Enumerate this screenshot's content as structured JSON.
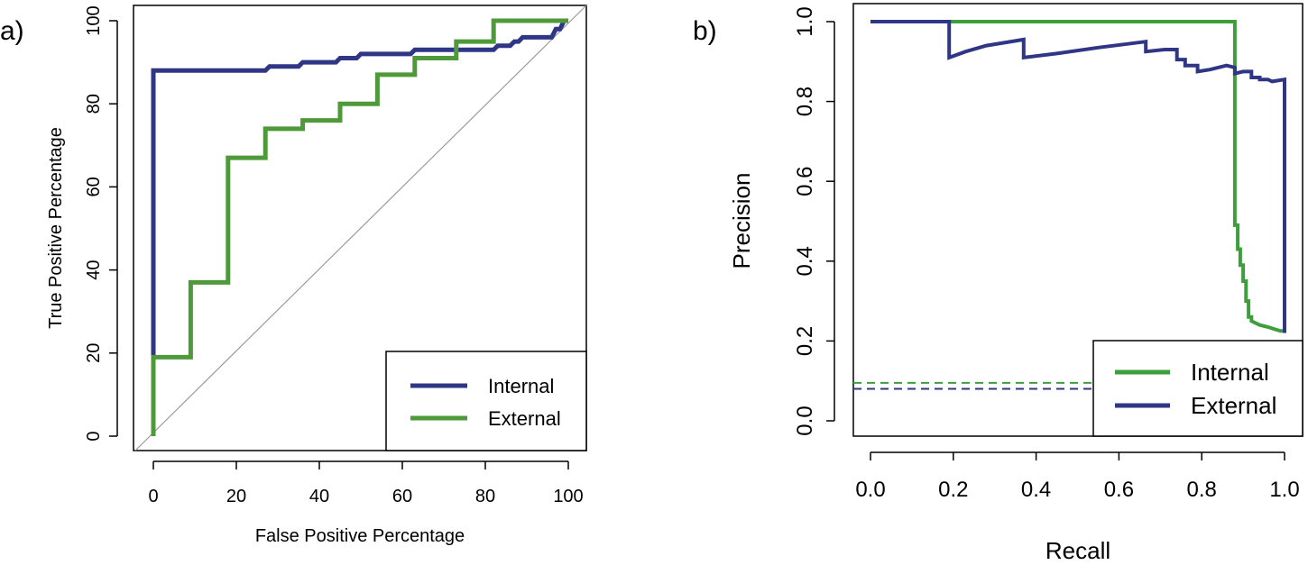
{
  "colors": {
    "blue": "#2E3685",
    "green": "#4E9A3A",
    "green_b": "#3E9E3C",
    "diag": "#9A9A9A"
  },
  "chart_data": [
    {
      "panel": "a)",
      "type": "line",
      "title": "",
      "xlabel": "False Positive Percentage",
      "ylabel": "True Positive Percentage",
      "xlim": [
        0,
        100
      ],
      "ylim": [
        0,
        100
      ],
      "xticks": [
        "0",
        "20",
        "40",
        "60",
        "80",
        "100"
      ],
      "yticks": [
        "0",
        "20",
        "40",
        "60",
        "80",
        "100"
      ],
      "legend": {
        "position": "bottom-right",
        "entries": [
          "Internal",
          "External"
        ]
      },
      "reference_line": {
        "from": [
          0,
          0
        ],
        "to": [
          100,
          100
        ]
      },
      "series": [
        {
          "name": "Internal",
          "color": "blue",
          "points": [
            [
              0,
              0
            ],
            [
              0,
              88
            ],
            [
              27,
              88
            ],
            [
              28,
              89
            ],
            [
              35,
              89
            ],
            [
              36,
              90
            ],
            [
              44,
              90
            ],
            [
              45,
              91
            ],
            [
              49,
              91
            ],
            [
              50,
              92
            ],
            [
              62,
              92
            ],
            [
              63,
              93
            ],
            [
              72,
              93
            ],
            [
              73,
              93
            ],
            [
              82,
              93
            ],
            [
              83,
              94
            ],
            [
              86,
              94
            ],
            [
              87,
              95
            ],
            [
              88,
              95
            ],
            [
              89,
              96
            ],
            [
              96,
              96
            ],
            [
              97,
              98
            ],
            [
              98,
              98
            ],
            [
              99,
              100
            ],
            [
              100,
              100
            ]
          ]
        },
        {
          "name": "External",
          "color": "green",
          "points": [
            [
              0,
              0
            ],
            [
              0,
              19
            ],
            [
              9,
              19
            ],
            [
              9,
              37
            ],
            [
              18,
              37
            ],
            [
              18,
              67
            ],
            [
              27,
              67
            ],
            [
              27,
              74
            ],
            [
              36,
              74
            ],
            [
              36,
              76
            ],
            [
              45,
              76
            ],
            [
              45,
              80
            ],
            [
              54,
              80
            ],
            [
              54,
              87
            ],
            [
              63,
              87
            ],
            [
              63,
              91
            ],
            [
              73,
              91
            ],
            [
              73,
              95
            ],
            [
              82,
              95
            ],
            [
              82,
              100
            ],
            [
              100,
              100
            ]
          ]
        }
      ]
    },
    {
      "panel": "b)",
      "type": "line",
      "title": "",
      "xlabel": "Recall",
      "ylabel": "Precision",
      "xlim": [
        0,
        1
      ],
      "ylim": [
        0,
        1
      ],
      "xticks": [
        "0.0",
        "0.2",
        "0.4",
        "0.6",
        "0.8",
        "1.0"
      ],
      "yticks": [
        "0.0",
        "0.2",
        "0.4",
        "0.6",
        "0.8",
        "1.0"
      ],
      "legend": {
        "position": "bottom-right",
        "entries": [
          "Internal",
          "External"
        ]
      },
      "baselines": [
        {
          "series": "Internal",
          "y": 0.095,
          "color": "green_b"
        },
        {
          "series": "External",
          "y": 0.08,
          "color": "blue"
        }
      ],
      "series": [
        {
          "name": "Internal",
          "color": "green_b",
          "points": [
            [
              0,
              1
            ],
            [
              0.88,
              1
            ],
            [
              0.88,
              0.49
            ],
            [
              0.887,
              0.49
            ],
            [
              0.887,
              0.43
            ],
            [
              0.893,
              0.43
            ],
            [
              0.893,
              0.39
            ],
            [
              0.9,
              0.39
            ],
            [
              0.9,
              0.35
            ],
            [
              0.907,
              0.35
            ],
            [
              0.907,
              0.3
            ],
            [
              0.913,
              0.3
            ],
            [
              0.913,
              0.26
            ],
            [
              0.92,
              0.26
            ],
            [
              0.92,
              0.25
            ],
            [
              0.94,
              0.24
            ],
            [
              0.96,
              0.235
            ],
            [
              0.975,
              0.23
            ],
            [
              0.99,
              0.225
            ],
            [
              1,
              0.225
            ],
            [
              1,
              0.22
            ]
          ]
        },
        {
          "name": "External",
          "color": "blue",
          "points": [
            [
              0,
              1
            ],
            [
              0.19,
              1
            ],
            [
              0.19,
              0.91
            ],
            [
              0.23,
              0.925
            ],
            [
              0.28,
              0.94
            ],
            [
              0.37,
              0.955
            ],
            [
              0.37,
              0.91
            ],
            [
              0.45,
              0.92
            ],
            [
              0.55,
              0.935
            ],
            [
              0.665,
              0.95
            ],
            [
              0.665,
              0.925
            ],
            [
              0.71,
              0.93
            ],
            [
              0.74,
              0.93
            ],
            [
              0.74,
              0.905
            ],
            [
              0.76,
              0.905
            ],
            [
              0.76,
              0.89
            ],
            [
              0.79,
              0.89
            ],
            [
              0.79,
              0.875
            ],
            [
              0.82,
              0.88
            ],
            [
              0.86,
              0.89
            ],
            [
              0.88,
              0.885
            ],
            [
              0.88,
              0.87
            ],
            [
              0.9,
              0.875
            ],
            [
              0.92,
              0.875
            ],
            [
              0.92,
              0.86
            ],
            [
              0.94,
              0.86
            ],
            [
              0.94,
              0.855
            ],
            [
              0.96,
              0.855
            ],
            [
              0.97,
              0.85
            ],
            [
              1,
              0.855
            ],
            [
              1,
              0.22
            ]
          ]
        }
      ]
    }
  ]
}
